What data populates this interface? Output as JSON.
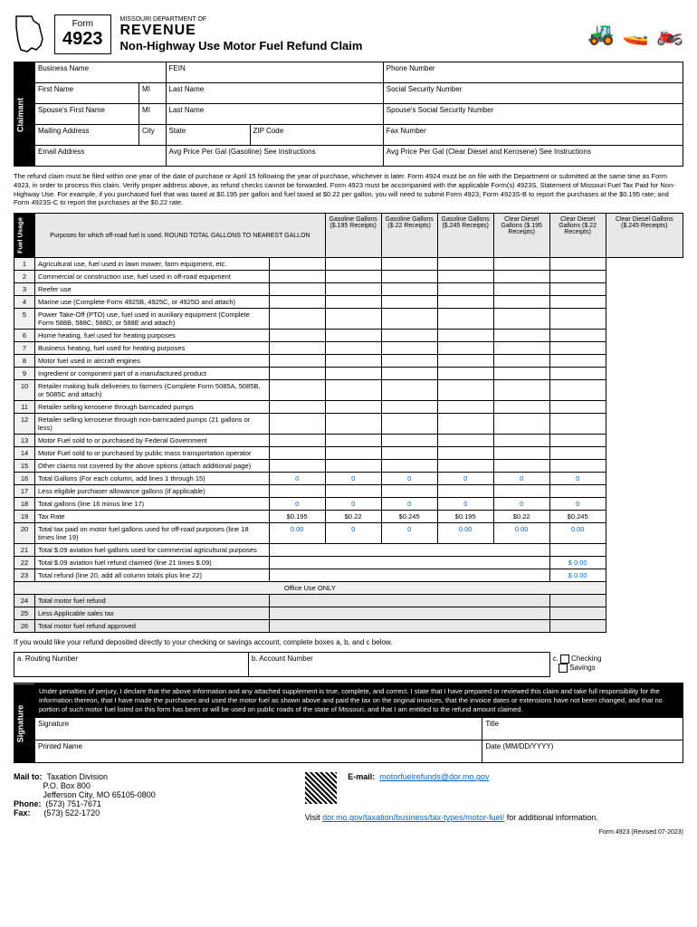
{
  "header": {
    "form_label": "Form",
    "form_num": "4923",
    "dept": "MISSOURI DEPARTMENT OF",
    "logo": "REVENUE",
    "title": "Non-Highway Use Motor Fuel Refund Claim"
  },
  "claimant": {
    "side": "Claimant",
    "fields": {
      "business": "Business Name",
      "fein": "FEIN",
      "phone": "Phone Number",
      "first": "First Name",
      "mi": "MI",
      "last": "Last Name",
      "ssn": "Social Security Number",
      "sp_first": "Spouse's First Name",
      "sp_last": "Last Name",
      "sp_ssn": "Spouse's Social Security Number",
      "mailing": "Mailing Address",
      "city": "City",
      "state": "State",
      "zip": "ZIP Code",
      "fax": "Fax Number",
      "email": "Email Address",
      "avg_gas": "Avg Price Per Gal (Gasoline) See Instructions",
      "avg_diesel": "Avg Price Per Gal (Clear Diesel and Kerosene) See Instructions"
    }
  },
  "instr": "The refund claim must be filed within one year of the date of purchase or April 15 following the year of purchase, whichever is later. Form 4924 must be on file with the Department or submitted at the same time as Form 4923, in order to process this claim. Verify proper address above, as refund checks cannot be forwarded. Form 4923 must be accompanied with the applicable Form(s) 4923S, Statement of Missouri Fuel Tax Paid for Non-Highway Use. For example, if you purchased fuel that was taxed at $0.195 per gallon and fuel taxed at $0.22 per gallon, you will need to submit Form 4923; Form 4923S-B to report the purchases at the $0.195 rate; and Form 4923S-C to report the purchases at the $0.22 rate.",
  "usage": {
    "side": "Fuel Usage",
    "header": "Purposes for which off-road fuel is used. ROUND TOTAL GALLONS TO NEAREST GALLON",
    "cols": [
      "Gasoline Gallons ($.195 Receipts)",
      "Gasoline Gallons ($.22 Receipts)",
      "Gasoline Gallons ($.245 Receipts)",
      "Clear Diesel Gallons ($.195 Receipts)",
      "Clear Diesel Gallons ($.22 Receipts)",
      "Clear Diesel Gallons ($.245 Receipts)"
    ],
    "rows": [
      {
        "n": "1",
        "t": "Agricultural use, fuel used in lawn mower, farm equipment, etc."
      },
      {
        "n": "2",
        "t": "Commercial or construction use, fuel used in off-road equipment"
      },
      {
        "n": "3",
        "t": "Reefer use"
      },
      {
        "n": "4",
        "t": "Marine use (Complete Form 4925B, 4925C, or 4925D and attach)"
      },
      {
        "n": "5",
        "t": "Power Take-Off (PTO) use, fuel used in auxiliary equipment (Complete Form 588B, 588C, 588D, or 588E and attach)"
      },
      {
        "n": "6",
        "t": "Home heating, fuel used for heating purposes"
      },
      {
        "n": "7",
        "t": "Business heating, fuel used for heating purposes"
      },
      {
        "n": "8",
        "t": "Motor fuel used in aircraft engines"
      },
      {
        "n": "9",
        "t": "Ingredient or component part of a manufactured product"
      },
      {
        "n": "10",
        "t": "Retailer making bulk deliveries to farmers (Complete Form 5085A, 5085B, or 5085C and attach)"
      },
      {
        "n": "11",
        "t": "Retailer selling kerosene through barricaded pumps"
      },
      {
        "n": "12",
        "t": "Retailer selling kerosene through non-barricaded pumps (21 gallons or less)"
      },
      {
        "n": "13",
        "t": "Motor Fuel sold to or purchased by Federal Government"
      },
      {
        "n": "14",
        "t": "Motor Fuel sold to or purchased by public mass transportation operator"
      },
      {
        "n": "15",
        "t": "Other claims not covered by the above options (attach additional page)"
      },
      {
        "n": "16",
        "t": "Total Gallons (For each column, add lines 1 through 15)",
        "v": [
          "0",
          "0",
          "0",
          "0",
          "0",
          "0"
        ]
      },
      {
        "n": "17",
        "t": "Less eligible purchaser allowance gallons (if applicable)"
      },
      {
        "n": "18",
        "t": "Total gallons (line 16 minus line 17)",
        "v": [
          "0",
          "0",
          "0",
          "0",
          "0",
          "0"
        ]
      },
      {
        "n": "19",
        "t": "Tax Rate",
        "v": [
          "$0.195",
          "$0.22",
          "$0.245",
          "$0.195",
          "$0.22",
          "$0.245"
        ],
        "black": true
      },
      {
        "n": "20",
        "t": "Total tax paid on motor fuel gallons used for off-road purposes (line 18 times line 19)",
        "v": [
          "0.00",
          "0",
          "0",
          "0.00",
          "0.00",
          "0.00"
        ]
      },
      {
        "n": "21",
        "t": "Total $.09 aviation fuel gallons used for commercial agricultural purposes",
        "span": true
      },
      {
        "n": "22",
        "t": "Total $.09 aviation fuel refund claimed (line 21 times $.09)",
        "span": true,
        "last": "$ 0.00"
      },
      {
        "n": "23",
        "t": "Total refund (line 20, add all column totals plus line 22)",
        "span": true,
        "last": "$ 0.00"
      }
    ],
    "office": "Office Use ONLY",
    "office_rows": [
      {
        "n": "24",
        "t": "Total motor fuel refund"
      },
      {
        "n": "25",
        "t": "Less Applicable sales tax"
      },
      {
        "n": "26",
        "t": "Total motor fuel refund approved"
      }
    ]
  },
  "deposit": {
    "text": "If you would like your refund deposited directly to your checking or savings account, complete boxes a, b, and c below.",
    "a": "a. Routing Number",
    "b": "b. Account Number",
    "c": "c.",
    "checking": "Checking",
    "savings": "Savings"
  },
  "sig": {
    "side": "Signature",
    "text": "Under penalties of perjury, I declare that the above information and any attached supplement is true, complete, and correct. I state that I have prepared or reviewed this claim and take full responsibility for the information thereon, that I have made the purchases and used the motor fuel as shown above and paid the tax on the original invoices, that the invoice dates or extensions have not been changed, and that no portion of such motor fuel listed on this form has been or will be used on public roads of the state of Missouri, and that I am entitled to the refund amount claimed.",
    "signature": "Signature",
    "title": "Title",
    "printed": "Printed Name",
    "date": "Date (MM/DD/YYYY)"
  },
  "footer": {
    "mailto": "Mail to:",
    "addr1": "Taxation Division",
    "addr2": "P.O. Box 800",
    "addr3": "Jefferson City, MO 65105-0800",
    "phone_l": "Phone:",
    "phone": "(573) 751-7671",
    "fax_l": "Fax:",
    "fax": "(573) 522-1720",
    "email_l": "E-mail:",
    "email": "motorfuelrefunds@dor.mo.gov",
    "visit": "Visit ",
    "url": "dor.mo.gov/taxation/business/tax-types/motor-fuel/",
    "visit2": " for additional information.",
    "rev": "Form 4923 (Revised 07-2023)"
  }
}
